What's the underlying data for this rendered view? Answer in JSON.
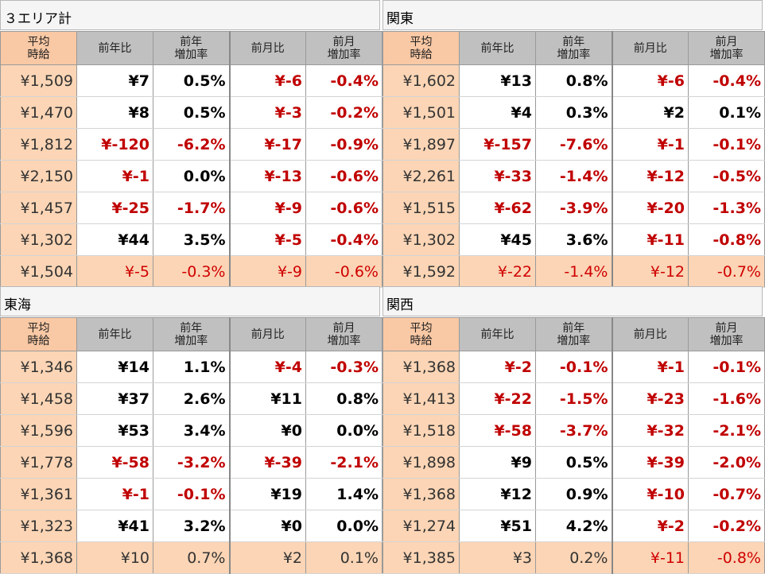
{
  "headers": [
    "平均\n時給",
    "前年比",
    "前年\n増加率",
    "前月比",
    "前月\n増加率"
  ],
  "panels": [
    {
      "title": "３エリア計",
      "rows": [
        [
          "¥1,509",
          "¥7",
          "0.5%",
          "¥-6",
          "-0.4%"
        ],
        [
          "¥1,470",
          "¥8",
          "0.5%",
          "¥-3",
          "-0.2%"
        ],
        [
          "¥1,812",
          "¥-120",
          "-6.2%",
          "¥-17",
          "-0.9%"
        ],
        [
          "¥2,150",
          "¥-1",
          "0.0%",
          "¥-13",
          "-0.6%"
        ],
        [
          "¥1,457",
          "¥-25",
          "-1.7%",
          "¥-9",
          "-0.6%"
        ],
        [
          "¥1,302",
          "¥44",
          "3.5%",
          "¥-5",
          "-0.4%"
        ],
        [
          "¥1,504",
          "¥-5",
          "-0.3%",
          "¥-9",
          "-0.6%"
        ]
      ]
    },
    {
      "title": "関東",
      "rows": [
        [
          "¥1,602",
          "¥13",
          "0.8%",
          "¥-6",
          "-0.4%"
        ],
        [
          "¥1,501",
          "¥4",
          "0.3%",
          "¥2",
          "0.1%"
        ],
        [
          "¥1,897",
          "¥-157",
          "-7.6%",
          "¥-1",
          "-0.1%"
        ],
        [
          "¥2,261",
          "¥-33",
          "-1.4%",
          "¥-12",
          "-0.5%"
        ],
        [
          "¥1,515",
          "¥-62",
          "-3.9%",
          "¥-20",
          "-1.3%"
        ],
        [
          "¥1,302",
          "¥45",
          "3.6%",
          "¥-11",
          "-0.8%"
        ],
        [
          "¥1,592",
          "¥-22",
          "-1.4%",
          "¥-12",
          "-0.7%"
        ]
      ]
    },
    {
      "title": "東海",
      "rows": [
        [
          "¥1,346",
          "¥14",
          "1.1%",
          "¥-4",
          "-0.3%"
        ],
        [
          "¥1,458",
          "¥37",
          "2.6%",
          "¥11",
          "0.8%"
        ],
        [
          "¥1,596",
          "¥53",
          "3.4%",
          "¥0",
          "0.0%"
        ],
        [
          "¥1,778",
          "¥-58",
          "-3.2%",
          "¥-39",
          "-2.1%"
        ],
        [
          "¥1,361",
          "¥-1",
          "-0.1%",
          "¥19",
          "1.4%"
        ],
        [
          "¥1,323",
          "¥41",
          "3.2%",
          "¥0",
          "0.0%"
        ],
        [
          "¥1,368",
          "¥10",
          "0.7%",
          "¥2",
          "0.1%"
        ]
      ]
    },
    {
      "title": "関西",
      "rows": [
        [
          "¥1,368",
          "¥-2",
          "-0.1%",
          "¥-1",
          "-0.1%"
        ],
        [
          "¥1,413",
          "¥-22",
          "-1.5%",
          "¥-23",
          "-1.6%"
        ],
        [
          "¥1,518",
          "¥-58",
          "-3.7%",
          "¥-32",
          "-2.1%"
        ],
        [
          "¥1,898",
          "¥9",
          "0.5%",
          "¥-39",
          "-2.0%"
        ],
        [
          "¥1,368",
          "¥12",
          "0.9%",
          "¥-10",
          "-0.7%"
        ],
        [
          "¥1,274",
          "¥51",
          "4.2%",
          "¥-2",
          "-0.2%"
        ],
        [
          "¥1,385",
          "¥3",
          "0.2%",
          "¥-11",
          "-0.8%"
        ]
      ]
    }
  ]
}
